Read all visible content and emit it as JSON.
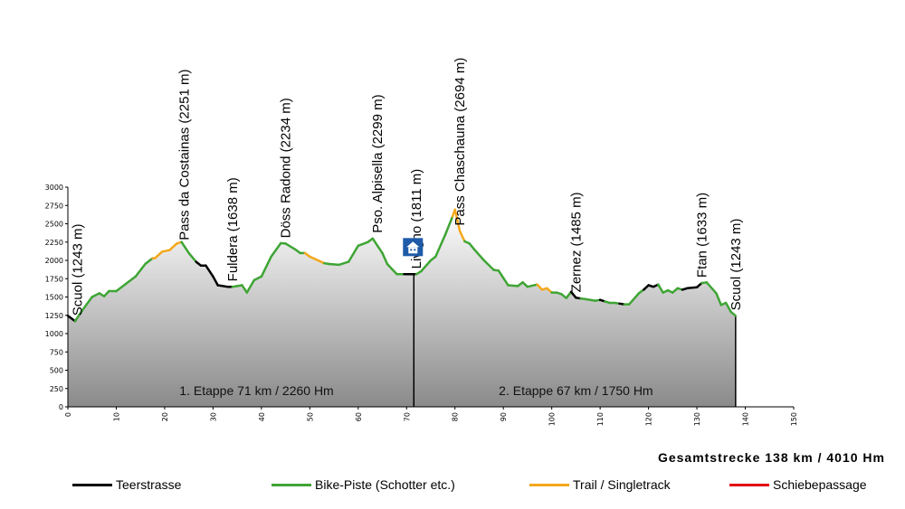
{
  "chart_data": {
    "type": "area",
    "title": "",
    "xlabel": "",
    "ylabel": "",
    "xlim": [
      0,
      150
    ],
    "ylim": [
      0,
      3000
    ],
    "x_ticks": [
      0,
      10,
      20,
      30,
      40,
      50,
      60,
      70,
      80,
      90,
      100,
      110,
      120,
      130,
      140,
      150
    ],
    "y_ticks": [
      0,
      250,
      500,
      750,
      1000,
      1250,
      1500,
      1750,
      2000,
      2250,
      2500,
      2750,
      3000
    ],
    "profile": [
      {
        "x": 0,
        "y": 1243,
        "surface": "Teerstrasse"
      },
      {
        "x": 1.5,
        "y": 1170,
        "surface": "Teerstrasse"
      },
      {
        "x": 3,
        "y": 1320,
        "surface": "Bike-Piste"
      },
      {
        "x": 5,
        "y": 1500,
        "surface": "Bike-Piste"
      },
      {
        "x": 6.5,
        "y": 1550,
        "surface": "Bike-Piste"
      },
      {
        "x": 7.5,
        "y": 1510,
        "surface": "Bike-Piste"
      },
      {
        "x": 8.5,
        "y": 1580,
        "surface": "Bike-Piste"
      },
      {
        "x": 10,
        "y": 1580,
        "surface": "Bike-Piste"
      },
      {
        "x": 14,
        "y": 1780,
        "surface": "Bike-Piste"
      },
      {
        "x": 16,
        "y": 1950,
        "surface": "Bike-Piste"
      },
      {
        "x": 17.5,
        "y": 2030,
        "surface": "Bike-Piste"
      },
      {
        "x": 18,
        "y": 2030,
        "surface": "Trail"
      },
      {
        "x": 19.5,
        "y": 2120,
        "surface": "Trail"
      },
      {
        "x": 21,
        "y": 2140,
        "surface": "Trail"
      },
      {
        "x": 22.5,
        "y": 2230,
        "surface": "Trail"
      },
      {
        "x": 23.5,
        "y": 2251,
        "surface": "Trail"
      },
      {
        "x": 24,
        "y": 2200,
        "surface": "Bike-Piste"
      },
      {
        "x": 25,
        "y": 2100,
        "surface": "Bike-Piste"
      },
      {
        "x": 26.5,
        "y": 1980,
        "surface": "Bike-Piste"
      },
      {
        "x": 27.5,
        "y": 1930,
        "surface": "Teerstrasse"
      },
      {
        "x": 28.5,
        "y": 1930,
        "surface": "Teerstrasse"
      },
      {
        "x": 30,
        "y": 1780,
        "surface": "Teerstrasse"
      },
      {
        "x": 31,
        "y": 1660,
        "surface": "Teerstrasse"
      },
      {
        "x": 33,
        "y": 1640,
        "surface": "Teerstrasse"
      },
      {
        "x": 34,
        "y": 1638,
        "surface": "Teerstrasse"
      },
      {
        "x": 35,
        "y": 1650,
        "surface": "Bike-Piste"
      },
      {
        "x": 36,
        "y": 1660,
        "surface": "Bike-Piste"
      },
      {
        "x": 37,
        "y": 1560,
        "surface": "Bike-Piste"
      },
      {
        "x": 38.5,
        "y": 1730,
        "surface": "Bike-Piste"
      },
      {
        "x": 40,
        "y": 1780,
        "surface": "Bike-Piste"
      },
      {
        "x": 42,
        "y": 2050,
        "surface": "Bike-Piste"
      },
      {
        "x": 44,
        "y": 2234,
        "surface": "Bike-Piste"
      },
      {
        "x": 45,
        "y": 2230,
        "surface": "Bike-Piste"
      },
      {
        "x": 47,
        "y": 2150,
        "surface": "Bike-Piste"
      },
      {
        "x": 48,
        "y": 2100,
        "surface": "Bike-Piste"
      },
      {
        "x": 49,
        "y": 2100,
        "surface": "Bike-Piste"
      },
      {
        "x": 50,
        "y": 2050,
        "surface": "Trail"
      },
      {
        "x": 53,
        "y": 1960,
        "surface": "Trail"
      },
      {
        "x": 54,
        "y": 1950,
        "surface": "Bike-Piste"
      },
      {
        "x": 56,
        "y": 1940,
        "surface": "Bike-Piste"
      },
      {
        "x": 58,
        "y": 1980,
        "surface": "Bike-Piste"
      },
      {
        "x": 60,
        "y": 2200,
        "surface": "Bike-Piste"
      },
      {
        "x": 62,
        "y": 2250,
        "surface": "Bike-Piste"
      },
      {
        "x": 63,
        "y": 2299,
        "surface": "Bike-Piste"
      },
      {
        "x": 65,
        "y": 2100,
        "surface": "Bike-Piste"
      },
      {
        "x": 66,
        "y": 1950,
        "surface": "Bike-Piste"
      },
      {
        "x": 67,
        "y": 1880,
        "surface": "Bike-Piste"
      },
      {
        "x": 68,
        "y": 1811,
        "surface": "Bike-Piste"
      },
      {
        "x": 69.5,
        "y": 1811,
        "surface": "Bike-Piste"
      },
      {
        "x": 70.5,
        "y": 1811,
        "surface": "Teerstrasse"
      },
      {
        "x": 72,
        "y": 1811,
        "surface": "Teerstrasse"
      },
      {
        "x": 73,
        "y": 1850,
        "surface": "Bike-Piste"
      },
      {
        "x": 75,
        "y": 2000,
        "surface": "Bike-Piste"
      },
      {
        "x": 76,
        "y": 2050,
        "surface": "Bike-Piste"
      },
      {
        "x": 78,
        "y": 2350,
        "surface": "Bike-Piste"
      },
      {
        "x": 79.5,
        "y": 2600,
        "surface": "Bike-Piste"
      },
      {
        "x": 80,
        "y": 2694,
        "surface": "Trail"
      },
      {
        "x": 81,
        "y": 2400,
        "surface": "Trail"
      },
      {
        "x": 82,
        "y": 2260,
        "surface": "Trail"
      },
      {
        "x": 83,
        "y": 2230,
        "surface": "Bike-Piste"
      },
      {
        "x": 84,
        "y": 2150,
        "surface": "Bike-Piste"
      },
      {
        "x": 86,
        "y": 2000,
        "surface": "Bike-Piste"
      },
      {
        "x": 88,
        "y": 1870,
        "surface": "Bike-Piste"
      },
      {
        "x": 89,
        "y": 1860,
        "surface": "Bike-Piste"
      },
      {
        "x": 90,
        "y": 1760,
        "surface": "Bike-Piste"
      },
      {
        "x": 91,
        "y": 1660,
        "surface": "Bike-Piste"
      },
      {
        "x": 93,
        "y": 1650,
        "surface": "Bike-Piste"
      },
      {
        "x": 94,
        "y": 1700,
        "surface": "Bike-Piste"
      },
      {
        "x": 95,
        "y": 1640,
        "surface": "Bike-Piste"
      },
      {
        "x": 97,
        "y": 1670,
        "surface": "Bike-Piste"
      },
      {
        "x": 98,
        "y": 1600,
        "surface": "Trail"
      },
      {
        "x": 99,
        "y": 1620,
        "surface": "Trail"
      },
      {
        "x": 100,
        "y": 1560,
        "surface": "Trail"
      },
      {
        "x": 101,
        "y": 1560,
        "surface": "Bike-Piste"
      },
      {
        "x": 102,
        "y": 1540,
        "surface": "Bike-Piste"
      },
      {
        "x": 103,
        "y": 1485,
        "surface": "Bike-Piste"
      },
      {
        "x": 104,
        "y": 1570,
        "surface": "Bike-Piste"
      },
      {
        "x": 105,
        "y": 1490,
        "surface": "Teerstrasse"
      },
      {
        "x": 106,
        "y": 1480,
        "surface": "Teerstrasse"
      },
      {
        "x": 107,
        "y": 1470,
        "surface": "Bike-Piste"
      },
      {
        "x": 109,
        "y": 1450,
        "surface": "Bike-Piste"
      },
      {
        "x": 110,
        "y": 1460,
        "surface": "Bike-Piste"
      },
      {
        "x": 111,
        "y": 1440,
        "surface": "Teerstrasse"
      },
      {
        "x": 112,
        "y": 1420,
        "surface": "Bike-Piste"
      },
      {
        "x": 113,
        "y": 1420,
        "surface": "Bike-Piste"
      },
      {
        "x": 114,
        "y": 1410,
        "surface": "Bike-Piste"
      },
      {
        "x": 115,
        "y": 1400,
        "surface": "Teerstrasse"
      },
      {
        "x": 116,
        "y": 1400,
        "surface": "Bike-Piste"
      },
      {
        "x": 118,
        "y": 1550,
        "surface": "Bike-Piste"
      },
      {
        "x": 119,
        "y": 1600,
        "surface": "Bike-Piste"
      },
      {
        "x": 120,
        "y": 1660,
        "surface": "Teerstrasse"
      },
      {
        "x": 121,
        "y": 1640,
        "surface": "Teerstrasse"
      },
      {
        "x": 122,
        "y": 1670,
        "surface": "Teerstrasse"
      },
      {
        "x": 123,
        "y": 1560,
        "surface": "Bike-Piste"
      },
      {
        "x": 124,
        "y": 1590,
        "surface": "Bike-Piste"
      },
      {
        "x": 125,
        "y": 1560,
        "surface": "Bike-Piste"
      },
      {
        "x": 126,
        "y": 1620,
        "surface": "Bike-Piste"
      },
      {
        "x": 127,
        "y": 1600,
        "surface": "Bike-Piste"
      },
      {
        "x": 128,
        "y": 1620,
        "surface": "Teerstrasse"
      },
      {
        "x": 130,
        "y": 1633,
        "surface": "Teerstrasse"
      },
      {
        "x": 131,
        "y": 1690,
        "surface": "Teerstrasse"
      },
      {
        "x": 132,
        "y": 1700,
        "surface": "Bike-Piste"
      },
      {
        "x": 134,
        "y": 1550,
        "surface": "Bike-Piste"
      },
      {
        "x": 135,
        "y": 1390,
        "surface": "Bike-Piste"
      },
      {
        "x": 136,
        "y": 1420,
        "surface": "Bike-Piste"
      },
      {
        "x": 137,
        "y": 1300,
        "surface": "Bike-Piste"
      },
      {
        "x": 138,
        "y": 1243,
        "surface": "Bike-Piste"
      }
    ],
    "annotations": [
      {
        "label": "Scuol (1243 m)",
        "x": 2
      },
      {
        "label": "Pass da Costainas (2251 m)",
        "x": 24
      },
      {
        "label": "Fuldera (1638 m)",
        "x": 34
      },
      {
        "label": "Döss Radond (2234 m)",
        "x": 45
      },
      {
        "label": "Pso. Alpisella (2299 m)",
        "x": 64
      },
      {
        "label": "Livigno (1811 m)",
        "x": 72
      },
      {
        "label": "Pass Chaschauna (2694 m)",
        "x": 81
      },
      {
        "label": "Zernez (1485 m)",
        "x": 105
      },
      {
        "label": "Ftan (1633 m)",
        "x": 131
      },
      {
        "label": "Scuol (1243 m)",
        "x": 138
      }
    ],
    "stage_divider_x": 71.5,
    "hut_icon": "hut-icon",
    "stages": [
      {
        "label": "1. Etappe 71 km / 2260 Hm",
        "x_center": 39
      },
      {
        "label": "2. Etappe 67 km / 1750 Hm",
        "x_center": 105
      }
    ],
    "summary": "Gesamtstrecke 138 km / 4010 Hm",
    "legend": [
      {
        "key": "Teerstrasse",
        "label": "Teerstrasse",
        "color": "#000000"
      },
      {
        "key": "Bike-Piste",
        "label": "Bike-Piste (Schotter etc.)",
        "color": "#3fa535"
      },
      {
        "key": "Trail",
        "label": "Trail / Singletrack",
        "color": "#f4a81d"
      },
      {
        "key": "Schiebepassage",
        "label": "Schiebepassage",
        "color": "#e30613"
      }
    ],
    "colors": {
      "axis": "#000000",
      "fill_top": "#ffffff",
      "fill_bottom": "#8a8a8a",
      "hut_box": "#1e5aa8"
    }
  }
}
